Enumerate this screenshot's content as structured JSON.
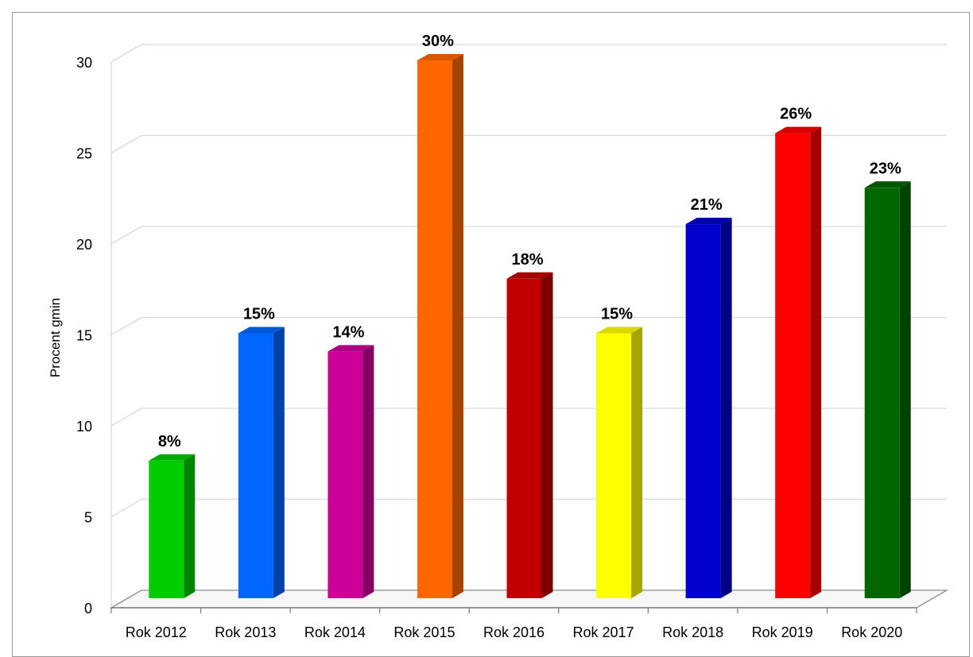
{
  "chart_data": {
    "type": "bar",
    "title": "",
    "xlabel": "",
    "ylabel": "Procent gmin",
    "ylim": [
      0,
      30
    ],
    "yticks": [
      0,
      5,
      10,
      15,
      20,
      25,
      30
    ],
    "grid": true,
    "legend": "none",
    "style": "3d-column",
    "categories": [
      "Rok 2012",
      "Rok 2013",
      "Rok 2014",
      "Rok 2015",
      "Rok 2016",
      "Rok 2017",
      "Rok 2018",
      "Rok 2019",
      "Rok 2020"
    ],
    "values": [
      8,
      15,
      14,
      30,
      18,
      15,
      21,
      26,
      23
    ],
    "data_labels": [
      "8%",
      "15%",
      "14%",
      "30%",
      "18%",
      "15%",
      "21%",
      "26%",
      "23%"
    ],
    "colors": [
      "#00cc00",
      "#0066ff",
      "#cc0099",
      "#ff6600",
      "#c00000",
      "#ffff00",
      "#0000cc",
      "#ff0000",
      "#006600"
    ]
  }
}
